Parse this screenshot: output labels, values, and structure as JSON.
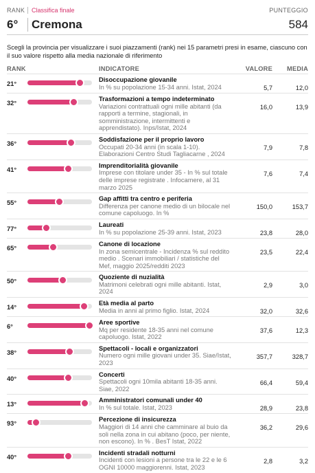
{
  "header": {
    "rank_label": "RANK",
    "title": "Classifica finale",
    "score_label": "PUNTEGGIO",
    "rank": "6°",
    "city": "Cremona",
    "score": 584
  },
  "intro": "Scegli la provincia per visualizzare i suoi piazzamenti (rank) nei 15 parametri presi in esame, ciascuno con il suo valore rispetto alla media nazionale di riferimento",
  "table": {
    "columns": [
      "RANK",
      "INDICATORE",
      "VALORE",
      "MEDIA"
    ],
    "xlim": [
      107,
      1
    ],
    "rows": [
      {
        "rank": {
          "value": 21,
          "label": "21°"
        },
        "title": "Disoccupazione giovanile",
        "description": "In % su popolazione 15-34 anni. Istat, 2024",
        "value": "5,7",
        "average": "12,0"
      },
      {
        "rank": {
          "value": 32,
          "label": "32°"
        },
        "title": "Trasformazioni a tempo indeterminato",
        "description": "Variazioni contrattuali ogni mille abitanti (da rapporti a termine, stagionali, in somministrazione, intermittenti e apprendistato). Inps/Istat, 2024",
        "value": "16,0",
        "average": "13,9"
      },
      {
        "rank": {
          "value": 36,
          "label": "36°"
        },
        "title": "Soddisfazione per il proprio lavoro",
        "description": "Occupati 20-34 anni (in scala 1-10). Elaborazioni Centro Studi Tagliacarne , 2024",
        "value": "7,9",
        "average": "7,8"
      },
      {
        "rank": {
          "value": 41,
          "label": "41°"
        },
        "title": "Imprenditorialità giovanile",
        "description": "Imprese con titolare under 35 - In % sul totale delle imprese registrate . Infocamere, al 31 marzo 2025",
        "value": "7,6",
        "average": "7,4"
      },
      {
        "rank": {
          "value": 55,
          "label": "55°"
        },
        "title": "Gap affitti tra centro e periferia",
        "description": "Differenza per canone medio di un bilocale nel comune capoluogo. In %",
        "value": "150,0",
        "average": "153,7"
      },
      {
        "rank": {
          "value": 77,
          "label": "77°"
        },
        "title": "Laureati",
        "description": "In % su popolazione 25-39 anni. Istat, 2023",
        "value": "23,8",
        "average": "28,0"
      },
      {
        "rank": {
          "value": 65,
          "label": "65°"
        },
        "title": "Canone di locazione",
        "description": "In zona semicentrale - Incidenza % sul reddito medio . Scenari immobiliari / statistiche del Mef, maggio 2025/redditi 2023",
        "value": "23,5",
        "average": "22,4"
      },
      {
        "rank": {
          "value": 50,
          "label": "50°"
        },
        "title": "Quoziente di nuzialità",
        "description": "Matrimoni celebrati ogni mille abitanti. Istat, 2024",
        "value": "2,9",
        "average": "3,0"
      },
      {
        "rank": {
          "value": 14,
          "label": "14°"
        },
        "title": "Età media al parto",
        "description": "Media in anni al primo figlio. Istat, 2024",
        "value": "32,0",
        "average": "32,6"
      },
      {
        "rank": {
          "value": 6,
          "label": "6°"
        },
        "title": "Aree sportive",
        "description": "Mq per residente 18-35 anni nel comune capoluogo. Istat, 2022",
        "value": "37,6",
        "average": "12,3"
      },
      {
        "rank": {
          "value": 38,
          "label": "38°"
        },
        "title": "Spettacoli - locali e organizzatori",
        "description": "Numero ogni mille giovani under 35. Siae/Istat, 2023",
        "value": "357,7",
        "average": "328,7"
      },
      {
        "rank": {
          "value": 40,
          "label": "40°"
        },
        "title": "Concerti",
        "description": "Spettacoli ogni 10mila abitanti 18-35 anni. Siae, 2022",
        "value": "66,4",
        "average": "59,4"
      },
      {
        "rank": {
          "value": 13,
          "label": "13°"
        },
        "title": "Amministratori comunali under 40",
        "description": "In % sul totale. Istat, 2023",
        "value": "28,9",
        "average": "23,8"
      },
      {
        "rank": {
          "value": 93,
          "label": "93°"
        },
        "title": "Percezione di insicurezza",
        "description": "Maggiori di 14 anni che camminare al buio da soli nella zona in cui abitano (poco, per niente, non escono). In % . BesT Istat, 2022",
        "value": "36,2",
        "average": "29,6"
      },
      {
        "rank": {
          "value": 40,
          "label": "40°"
        },
        "title": "Incidenti stradali notturni",
        "description": "Incidenti con lesioni a persone tra le 22 e le 6 OGNI 10000 maggiorenni. Istat, 2023",
        "value": "2,8",
        "average": "3,2"
      }
    ]
  }
}
